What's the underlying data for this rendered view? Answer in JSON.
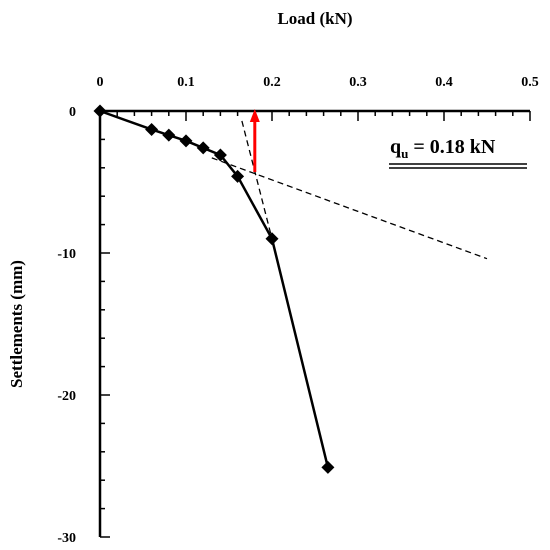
{
  "chart_data": {
    "type": "line",
    "title": "",
    "xlabel": "Load (kN)",
    "ylabel": "Settlements (mm)",
    "x_axis_position": "top",
    "xlim": [
      0,
      0.5
    ],
    "ylim": [
      -30,
      0
    ],
    "x_ticks": [
      "0",
      "0.1",
      "0.2",
      "0.3",
      "0.4",
      "0.5"
    ],
    "x_tick_values": [
      0,
      0.1,
      0.2,
      0.3,
      0.4,
      0.5
    ],
    "y_ticks": [
      "0",
      "-10",
      "-20",
      "-30"
    ],
    "y_tick_values": [
      0,
      -10,
      -20,
      -30
    ],
    "grid": false,
    "series": [
      {
        "color": "#000000",
        "marker": "diamond",
        "points": [
          {
            "x": 0,
            "y": 0
          },
          {
            "x": 0.06,
            "y": -1.3
          },
          {
            "x": 0.08,
            "y": -1.7
          },
          {
            "x": 0.1,
            "y": -2.1
          },
          {
            "x": 0.12,
            "y": -2.6
          },
          {
            "x": 0.14,
            "y": -3.1
          },
          {
            "x": 0.16,
            "y": -4.6
          },
          {
            "x": 0.2,
            "y": -9.0
          },
          {
            "x": 0.265,
            "y": -25.1
          }
        ]
      }
    ],
    "tangent_lines": [
      {
        "style": "dashed",
        "color": "#000000",
        "from": {
          "x": 0.13,
          "y": -3.3
        },
        "to": {
          "x": 0.45,
          "y": -10.4
        }
      },
      {
        "style": "dashed",
        "color": "#000000",
        "from": {
          "x": 0.165,
          "y": -0.7
        },
        "to": {
          "x": 0.2,
          "y": -9.0
        }
      }
    ],
    "marker_arrow": {
      "color": "#ff0000",
      "x": 0.18,
      "y_from": -4.3,
      "y_to": 0
    },
    "annotation": {
      "prefix": "q",
      "subscript": "u",
      "text": " = 0.18 kN",
      "double_underline": true
    }
  }
}
